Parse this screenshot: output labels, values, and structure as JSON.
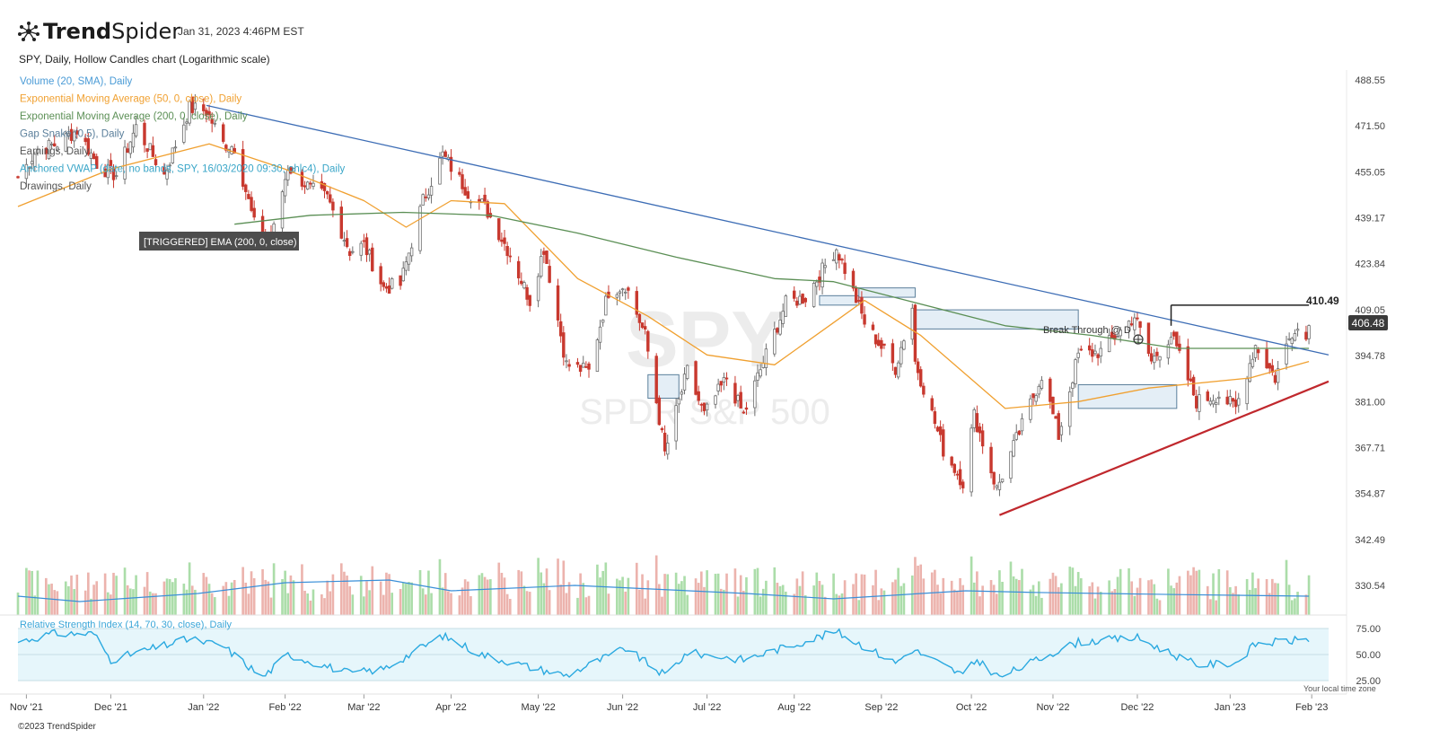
{
  "header": {
    "brand_bold": "Trend",
    "brand_light": "Spider",
    "timestamp": "Jan 31, 2023 4:46PM EST",
    "chart_title": "SPY, Daily, Hollow Candles chart (Logarithmic scale)"
  },
  "legend": [
    {
      "text": "Volume (20, SMA), Daily",
      "color": "#4a9bd6"
    },
    {
      "text": "Exponential Moving Average (50, 0, close), Daily",
      "color": "#f0a030"
    },
    {
      "text": "Exponential Moving Average (200, 0, close), Daily",
      "color": "#5b8f55"
    },
    {
      "text": "Gap Snake (0.5), Daily",
      "color": "#5b7f9b"
    },
    {
      "text": "Earnings, Daily",
      "color": "#555555"
    },
    {
      "text": "Anchored VWAP (date, no bands, SPY, 16/03/2020 09:30, ohlc4), Daily",
      "color": "#3aa6c8"
    },
    {
      "text": "Drawings, Daily",
      "color": "#555555"
    }
  ],
  "alert_label": "[TRIGGERED] EMA (200, 0, close)",
  "annotation_label": "Break Through @ D",
  "resistance_label": "410.49",
  "current_price": "406.48",
  "watermark": {
    "symbol": "SPY",
    "name": "SPDR S&P 500"
  },
  "rsi_label": "Relative Strength Index (14, 70, 30, close), Daily",
  "rsi_ticks": [
    "75.00",
    "50.00",
    "25.00"
  ],
  "time_zone_note": "Your local time zone",
  "copyright": "©2023 TrendSpider",
  "colors": {
    "up": "#8fd18c",
    "down": "#c8392f",
    "ema50": "#f0a030",
    "ema200": "#5b8f55",
    "downtrend": "#3d6db5",
    "uptrend": "#c0282d",
    "rsi": "#2aa9e0",
    "rsi_band": "#e6f6fb",
    "volume_sma": "#3a8fd8"
  },
  "chart_data": {
    "type": "candlestick",
    "symbol": "SPY",
    "interval": "Daily",
    "scale": "log",
    "y_ticks": [
      488.55,
      471.5,
      455.05,
      439.17,
      423.84,
      409.05,
      394.78,
      381.0,
      367.71,
      354.87,
      342.49,
      330.54
    ],
    "x_ticks": [
      "Nov '21",
      "Dec '21",
      "Jan '22",
      "Feb '22",
      "Mar '22",
      "Apr '22",
      "May '22",
      "Jun '22",
      "Jul '22",
      "Aug '22",
      "Sep '22",
      "Oct '22",
      "Nov '22",
      "Dec '22",
      "Jan '23",
      "Feb '23"
    ],
    "x_range": [
      "2021-10-29",
      "2023-02-07"
    ],
    "y_range": [
      325,
      495
    ],
    "close_path": [
      [
        "2021-10-29",
        453
      ],
      [
        "2021-11-05",
        463
      ],
      [
        "2021-11-12",
        465
      ],
      [
        "2021-11-19",
        470
      ],
      [
        "2021-11-26",
        458
      ],
      [
        "2021-11-30",
        455
      ],
      [
        "2021-12-03",
        454
      ],
      [
        "2021-12-10",
        471
      ],
      [
        "2021-12-17",
        459
      ],
      [
        "2021-12-20",
        454
      ],
      [
        "2021-12-29",
        478
      ],
      [
        "2022-01-04",
        477
      ],
      [
        "2022-01-10",
        465
      ],
      [
        "2022-01-14",
        464
      ],
      [
        "2022-01-21",
        437
      ],
      [
        "2022-01-27",
        431
      ],
      [
        "2022-02-02",
        457
      ],
      [
        "2022-02-10",
        449
      ],
      [
        "2022-02-16",
        446
      ],
      [
        "2022-02-24",
        428
      ],
      [
        "2022-03-01",
        430
      ],
      [
        "2022-03-08",
        416
      ],
      [
        "2022-03-14",
        417
      ],
      [
        "2022-03-22",
        445
      ],
      [
        "2022-03-29",
        461
      ],
      [
        "2022-04-07",
        448
      ],
      [
        "2022-04-13",
        443
      ],
      [
        "2022-04-22",
        427
      ],
      [
        "2022-04-29",
        412
      ],
      [
        "2022-05-04",
        429
      ],
      [
        "2022-05-12",
        392
      ],
      [
        "2022-05-20",
        390
      ],
      [
        "2022-05-27",
        415
      ],
      [
        "2022-06-02",
        417
      ],
      [
        "2022-06-09",
        401
      ],
      [
        "2022-06-16",
        366
      ],
      [
        "2022-06-24",
        390
      ],
      [
        "2022-06-30",
        377
      ],
      [
        "2022-07-08",
        388
      ],
      [
        "2022-07-14",
        377
      ],
      [
        "2022-07-22",
        395
      ],
      [
        "2022-07-29",
        411
      ],
      [
        "2022-08-05",
        413
      ],
      [
        "2022-08-16",
        429
      ],
      [
        "2022-08-19",
        422
      ],
      [
        "2022-08-26",
        405
      ],
      [
        "2022-09-06",
        391
      ],
      [
        "2022-09-12",
        410
      ],
      [
        "2022-09-13",
        393
      ],
      [
        "2022-09-23",
        367
      ],
      [
        "2022-09-30",
        358
      ],
      [
        "2022-10-04",
        377
      ],
      [
        "2022-10-12",
        356
      ],
      [
        "2022-10-21",
        374
      ],
      [
        "2022-10-28",
        389
      ],
      [
        "2022-11-03",
        371
      ],
      [
        "2022-11-10",
        395
      ],
      [
        "2022-11-18",
        396
      ],
      [
        "2022-11-30",
        407
      ],
      [
        "2022-12-06",
        393
      ],
      [
        "2022-12-13",
        401
      ],
      [
        "2022-12-22",
        381
      ],
      [
        "2022-12-30",
        383
      ],
      [
        "2023-01-05",
        379
      ],
      [
        "2023-01-12",
        398
      ],
      [
        "2023-01-19",
        388
      ],
      [
        "2023-01-24",
        400
      ],
      [
        "2023-01-26",
        404
      ],
      [
        "2023-01-30",
        400
      ],
      [
        "2023-01-31",
        406.48
      ]
    ],
    "ema50": [
      [
        "2021-10-29",
        443
      ],
      [
        "2021-12-01",
        456
      ],
      [
        "2022-01-05",
        465
      ],
      [
        "2022-02-01",
        456
      ],
      [
        "2022-03-01",
        445
      ],
      [
        "2022-03-16",
        436
      ],
      [
        "2022-04-01",
        445
      ],
      [
        "2022-04-20",
        444
      ],
      [
        "2022-05-16",
        419
      ],
      [
        "2022-06-10",
        407
      ],
      [
        "2022-07-01",
        395
      ],
      [
        "2022-07-25",
        392
      ],
      [
        "2022-08-15",
        405
      ],
      [
        "2022-08-26",
        412
      ],
      [
        "2022-09-15",
        401
      ],
      [
        "2022-10-15",
        379
      ],
      [
        "2022-11-10",
        381
      ],
      [
        "2022-12-05",
        385
      ],
      [
        "2023-01-10",
        388
      ],
      [
        "2023-01-31",
        393
      ]
    ],
    "ema200": [
      [
        "2022-01-14",
        437
      ],
      [
        "2022-02-10",
        440
      ],
      [
        "2022-03-15",
        441
      ],
      [
        "2022-04-15",
        440
      ],
      [
        "2022-05-16",
        434
      ],
      [
        "2022-06-20",
        426
      ],
      [
        "2022-07-25",
        419
      ],
      [
        "2022-08-15",
        418
      ],
      [
        "2022-09-10",
        412
      ],
      [
        "2022-10-15",
        404
      ],
      [
        "2022-11-15",
        401
      ],
      [
        "2022-12-15",
        397
      ],
      [
        "2023-01-31",
        397
      ]
    ],
    "downtrend_line": [
      [
        "2022-01-04",
        479
      ],
      [
        "2023-02-07",
        395
      ]
    ],
    "uptrend_line": [
      [
        "2022-10-13",
        349
      ],
      [
        "2023-02-07",
        387
      ]
    ],
    "resistance_line": [
      [
        "2022-12-13",
        410.49
      ],
      [
        "2023-01-31",
        410.49
      ]
    ],
    "gap_zones": [
      {
        "start": "2022-06-10",
        "end": "2022-06-21",
        "low": 382,
        "high": 389
      },
      {
        "start": "2022-08-10",
        "end": "2022-08-24",
        "low": 410.5,
        "high": 413.5
      },
      {
        "start": "2022-08-24",
        "end": "2022-09-13",
        "low": 413,
        "high": 416
      },
      {
        "start": "2022-09-13",
        "end": "2022-11-10",
        "low": 403,
        "high": 409
      },
      {
        "start": "2022-11-10",
        "end": "2022-12-15",
        "low": 379,
        "high": 386
      }
    ],
    "volume_sma_shape": [
      [
        "2021-10-29",
        0.35
      ],
      [
        "2021-11-20",
        0.25
      ],
      [
        "2022-01-01",
        0.4
      ],
      [
        "2022-02-01",
        0.6
      ],
      [
        "2022-03-10",
        0.65
      ],
      [
        "2022-04-01",
        0.45
      ],
      [
        "2022-05-15",
        0.55
      ],
      [
        "2022-07-15",
        0.4
      ],
      [
        "2022-08-15",
        0.3
      ],
      [
        "2022-10-01",
        0.45
      ],
      [
        "2022-10-25",
        0.42
      ],
      [
        "2022-12-15",
        0.38
      ],
      [
        "2023-01-31",
        0.35
      ]
    ],
    "rsi": [
      [
        "2021-10-29",
        62
      ],
      [
        "2021-11-10",
        70
      ],
      [
        "2021-11-25",
        70
      ],
      [
        "2021-12-01",
        45
      ],
      [
        "2021-12-15",
        55
      ],
      [
        "2021-12-29",
        65
      ],
      [
        "2022-01-10",
        58
      ],
      [
        "2022-01-24",
        28
      ],
      [
        "2022-02-02",
        50
      ],
      [
        "2022-02-24",
        32
      ],
      [
        "2022-03-08",
        36
      ],
      [
        "2022-03-29",
        68
      ],
      [
        "2022-04-12",
        50
      ],
      [
        "2022-04-29",
        38
      ],
      [
        "2022-05-12",
        30
      ],
      [
        "2022-06-02",
        56
      ],
      [
        "2022-06-16",
        30
      ],
      [
        "2022-06-24",
        52
      ],
      [
        "2022-07-14",
        45
      ],
      [
        "2022-08-16",
        72
      ],
      [
        "2022-09-06",
        42
      ],
      [
        "2022-09-12",
        55
      ],
      [
        "2022-09-30",
        30
      ],
      [
        "2022-10-05",
        45
      ],
      [
        "2022-10-13",
        28
      ],
      [
        "2022-11-01",
        52
      ],
      [
        "2022-11-10",
        62
      ],
      [
        "2022-12-01",
        66
      ],
      [
        "2022-12-22",
        40
      ],
      [
        "2023-01-05",
        42
      ],
      [
        "2023-01-12",
        60
      ],
      [
        "2023-01-31",
        65
      ]
    ],
    "title": "SPY, Daily, Hollow Candles chart (Logarithmic scale)"
  }
}
